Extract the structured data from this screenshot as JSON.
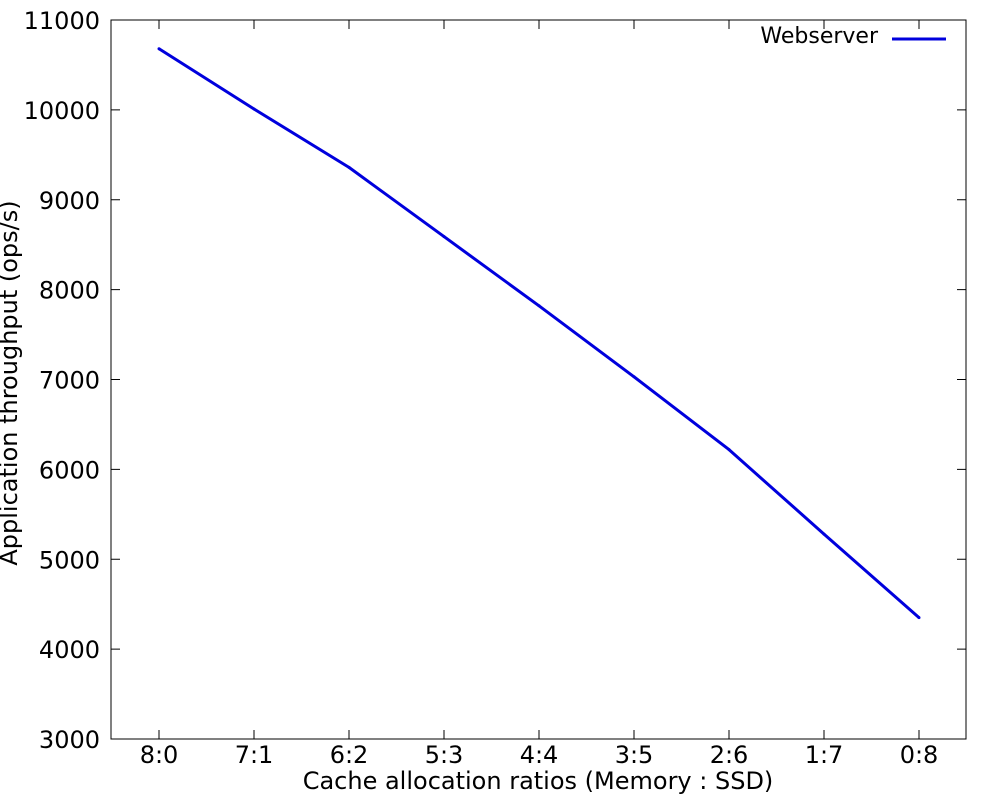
{
  "chart_data": {
    "type": "line",
    "title": "",
    "xlabel": "Cache allocation ratios (Memory : SSD)",
    "ylabel": "Application throughput (ops/s)",
    "categories": [
      "8:0",
      "7:1",
      "6:2",
      "5:3",
      "4:4",
      "3:5",
      "2:6",
      "1:7",
      "0:8"
    ],
    "ylim": [
      3000,
      11000
    ],
    "yticks": [
      "3000",
      "4000",
      "5000",
      "6000",
      "7000",
      "8000",
      "9000",
      "10000",
      "11000"
    ],
    "grid": false,
    "legend_position": "top-right",
    "series": [
      {
        "name": "Webserver",
        "color": "#0000dd",
        "values": [
          10680,
          10010,
          9360,
          8590,
          7820,
          7030,
          6220,
          5280,
          4350
        ]
      }
    ]
  }
}
